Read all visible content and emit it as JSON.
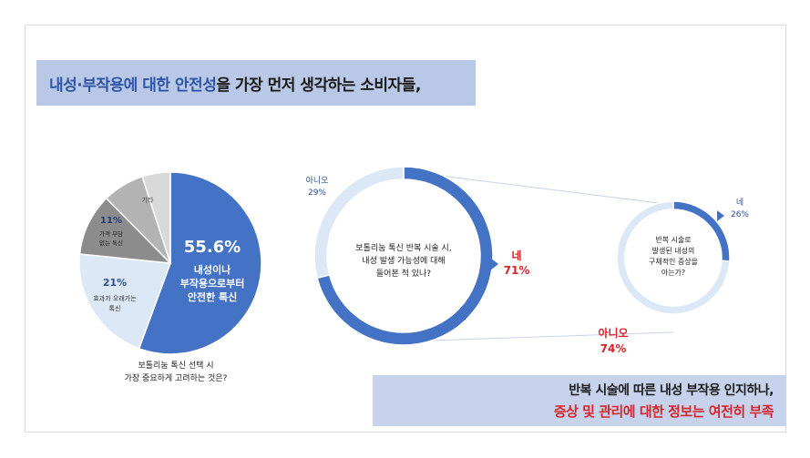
{
  "banner_top": {
    "highlight": "내성·부작용에 대한 안전성",
    "rest": "을 가장 먼저 생각하는 소비자들,"
  },
  "banner_bottom": {
    "line1": "반복 시술에 따른 내성 부작용 인지하나,",
    "line2": "증상 및 관리에 대한 정보는 여전히 부족"
  },
  "colors": {
    "blue": "#4472c4",
    "light_blue": "#dde8f6",
    "dark_gray": "#8c8c8c",
    "mid_gray": "#b3b3b3",
    "light_gray": "#d9d9d9",
    "red": "#d8232a"
  },
  "chart_data": [
    {
      "type": "pie",
      "question": [
        "보톨리눔 톡신 선택 시",
        "가장 중요하게 고려하는 것은?"
      ],
      "slices": [
        {
          "percent": "55.6%",
          "value": 55.6,
          "label": [
            "내성이나",
            "부작용으로부터",
            "안전한 톡신"
          ],
          "color": "#4472c4"
        },
        {
          "percent": "21%",
          "value": 21,
          "label": [
            "효과가 오래가는",
            "톡신"
          ],
          "color": "#dde8f6"
        },
        {
          "percent": "11%",
          "value": 11,
          "label": [
            "가격 부담",
            "없는 톡신"
          ],
          "color": "#8c8c8c"
        },
        {
          "percent": "",
          "value": 7.4,
          "label": [
            ""
          ],
          "color": "#b3b3b3"
        },
        {
          "percent": "",
          "value": 5,
          "label": [
            "기타"
          ],
          "color": "#d9d9d9"
        }
      ]
    },
    {
      "type": "pie",
      "question": [
        "보톨리눔 톡신 반복 시술 시,",
        "내성 발생 가능성에 대해",
        "들어본 적 있나?"
      ],
      "yes": {
        "label": "네",
        "percent": "71%",
        "value": 71
      },
      "no": {
        "label": "아니오",
        "percent": "29%",
        "value": 29
      }
    },
    {
      "type": "pie",
      "question": [
        "반복 시술로",
        "발생된 내성의",
        "구체적인 증상을",
        "아는가?"
      ],
      "yes": {
        "label": "네",
        "percent": "26%",
        "value": 26
      },
      "no": {
        "label": "아니오",
        "percent": "74%",
        "value": 74
      }
    }
  ]
}
